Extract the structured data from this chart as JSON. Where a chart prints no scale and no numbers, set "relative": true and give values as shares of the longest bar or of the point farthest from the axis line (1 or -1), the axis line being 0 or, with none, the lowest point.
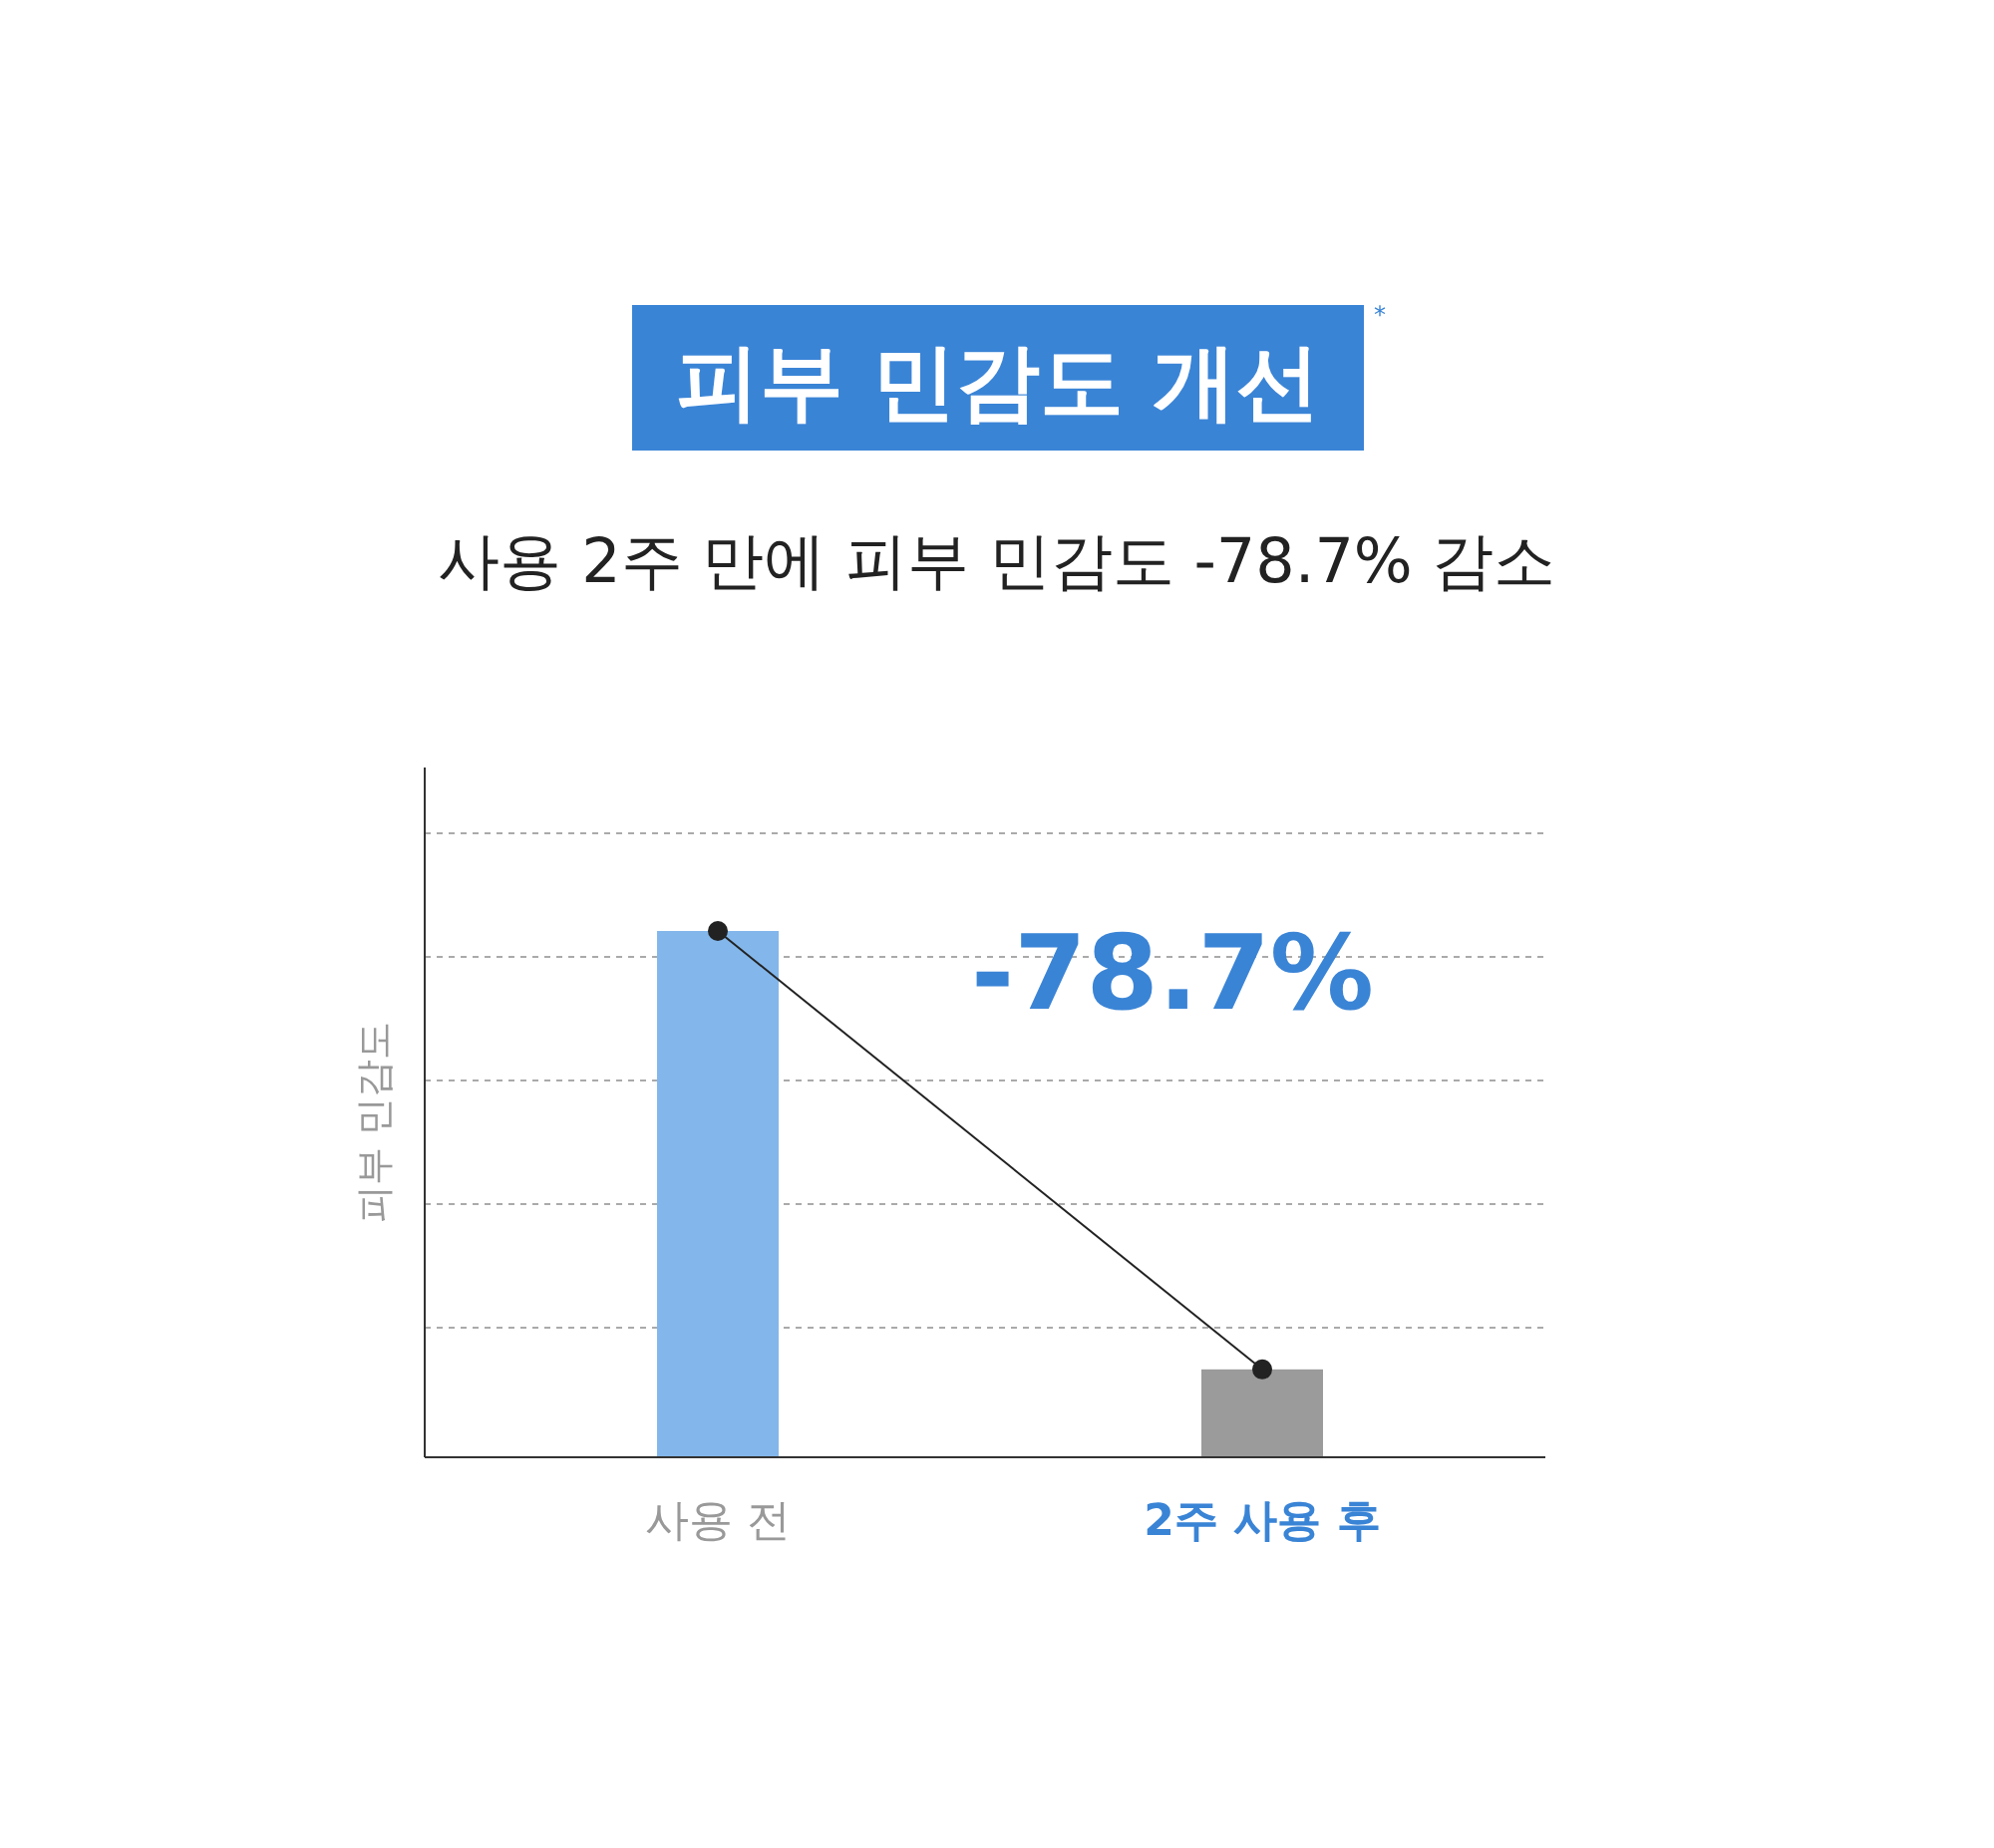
{
  "chart_data": {
    "type": "bar",
    "title": "피부 민감도 개선",
    "subtitle": "사용 2주 만에 피부 민감도 -78.7% 감소",
    "ylabel": "피부 민감도",
    "categories": [
      "사용 전",
      "2주 사용 후"
    ],
    "relative": true,
    "grid": "y",
    "series": [
      {
        "colors": [
          "#83b7eb",
          "#9b9b9b"
        ],
        "values": [
          1,
          0.167
        ]
      },
      {
        "type": "line",
        "color": "#222222",
        "marker": "circle",
        "values": [
          1,
          0.167
        ]
      }
    ],
    "annotations": [
      "*",
      "-78.7%"
    ]
  }
}
